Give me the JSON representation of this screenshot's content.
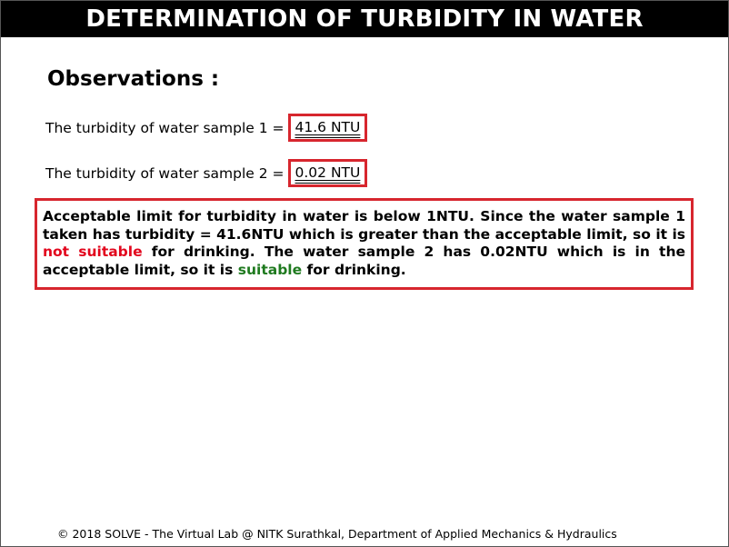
{
  "header": {
    "title": "DETERMINATION OF TURBIDITY IN WATER"
  },
  "observations": {
    "title": "Observations :",
    "rows": [
      {
        "label": "The turbidity of water sample 1 =",
        "value": "41.6 NTU"
      },
      {
        "label": "The turbidity of water sample 2 =",
        "value": "0.02 NTU"
      }
    ]
  },
  "conclusion": {
    "part1": "Acceptable limit for turbidity in water is below 1NTU. Since the water sample 1 taken has turbidity = 41.6NTU which is greater than the acceptable limit, so it is ",
    "not_suitable": "not suitable",
    "part2": " for drinking. The water sample 2 has 0.02NTU which is in the acceptable limit, so it is ",
    "suitable": "suitable",
    "part3": " for drinking."
  },
  "colors": {
    "header_background": "#000000",
    "header_text": "#ffffff",
    "box_border": "#d7262e",
    "not_suitable_text": "#e2061d",
    "suitable_text": "#1f7a1f"
  },
  "footer": {
    "text": "© 2018 SOLVE - The Virtual Lab @ NITK Surathkal, Department of Applied Mechanics & Hydraulics"
  }
}
